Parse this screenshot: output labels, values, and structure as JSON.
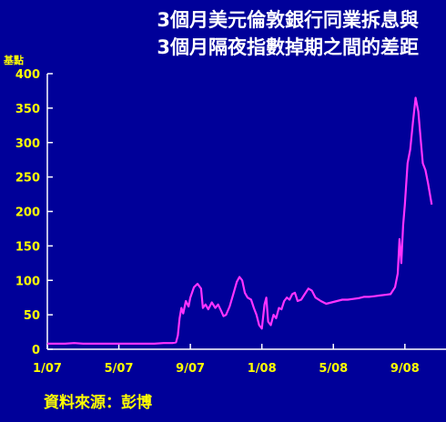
{
  "chart_data": {
    "type": "line",
    "title_lines": [
      "3個月美元倫敦銀行同業拆息與",
      "3個月隔夜指數掉期之間的差距"
    ],
    "ylabel": "基點",
    "source": "資料來源：彭博",
    "ylim": [
      0,
      400
    ],
    "y_ticks": [
      {
        "value": 0,
        "label": "0"
      },
      {
        "value": 50,
        "label": "50"
      },
      {
        "value": 100,
        "label": "100"
      },
      {
        "value": 150,
        "label": "150"
      },
      {
        "value": 200,
        "label": "200"
      },
      {
        "value": 250,
        "label": "250"
      },
      {
        "value": 300,
        "label": "300"
      },
      {
        "value": 350,
        "label": "350"
      },
      {
        "value": 400,
        "label": "400"
      }
    ],
    "x_ticks": [
      {
        "month_index": 0,
        "label": "1/07"
      },
      {
        "month_index": 4,
        "label": "5/07"
      },
      {
        "month_index": 8,
        "label": "9/07"
      },
      {
        "month_index": 12,
        "label": "1/08"
      },
      {
        "month_index": 16,
        "label": "5/08"
      },
      {
        "month_index": 20,
        "label": "9/08"
      }
    ],
    "x_range_months": [
      0,
      22.3
    ],
    "series": [
      {
        "color": "#FF33FF",
        "points": [
          [
            0.0,
            8
          ],
          [
            0.5,
            8
          ],
          [
            1.0,
            8
          ],
          [
            1.5,
            9
          ],
          [
            2.0,
            8
          ],
          [
            2.5,
            8
          ],
          [
            3.0,
            8
          ],
          [
            3.5,
            8
          ],
          [
            4.0,
            8
          ],
          [
            4.5,
            8
          ],
          [
            5.0,
            8
          ],
          [
            5.5,
            8
          ],
          [
            6.0,
            8
          ],
          [
            6.5,
            9
          ],
          [
            7.0,
            9
          ],
          [
            7.2,
            10
          ],
          [
            7.3,
            20
          ],
          [
            7.4,
            45
          ],
          [
            7.5,
            60
          ],
          [
            7.6,
            52
          ],
          [
            7.75,
            70
          ],
          [
            7.9,
            62
          ],
          [
            8.0,
            75
          ],
          [
            8.2,
            90
          ],
          [
            8.4,
            95
          ],
          [
            8.6,
            88
          ],
          [
            8.7,
            60
          ],
          [
            8.85,
            65
          ],
          [
            9.0,
            58
          ],
          [
            9.2,
            68
          ],
          [
            9.4,
            60
          ],
          [
            9.55,
            65
          ],
          [
            9.7,
            57
          ],
          [
            9.85,
            48
          ],
          [
            10.0,
            50
          ],
          [
            10.2,
            62
          ],
          [
            10.4,
            80
          ],
          [
            10.6,
            98
          ],
          [
            10.75,
            105
          ],
          [
            10.9,
            100
          ],
          [
            11.05,
            82
          ],
          [
            11.2,
            75
          ],
          [
            11.4,
            72
          ],
          [
            11.55,
            60
          ],
          [
            11.7,
            50
          ],
          [
            11.85,
            35
          ],
          [
            12.0,
            30
          ],
          [
            12.15,
            65
          ],
          [
            12.25,
            75
          ],
          [
            12.35,
            40
          ],
          [
            12.5,
            35
          ],
          [
            12.65,
            50
          ],
          [
            12.8,
            45
          ],
          [
            12.95,
            60
          ],
          [
            13.1,
            58
          ],
          [
            13.25,
            70
          ],
          [
            13.4,
            75
          ],
          [
            13.55,
            72
          ],
          [
            13.7,
            80
          ],
          [
            13.85,
            82
          ],
          [
            14.0,
            70
          ],
          [
            14.2,
            72
          ],
          [
            14.4,
            80
          ],
          [
            14.6,
            88
          ],
          [
            14.8,
            85
          ],
          [
            15.0,
            75
          ],
          [
            15.3,
            70
          ],
          [
            15.6,
            66
          ],
          [
            15.9,
            68
          ],
          [
            16.2,
            70
          ],
          [
            16.5,
            72
          ],
          [
            16.8,
            72
          ],
          [
            17.1,
            73
          ],
          [
            17.4,
            74
          ],
          [
            17.7,
            76
          ],
          [
            18.0,
            76
          ],
          [
            18.3,
            77
          ],
          [
            18.6,
            78
          ],
          [
            18.9,
            79
          ],
          [
            19.2,
            80
          ],
          [
            19.45,
            90
          ],
          [
            19.6,
            110
          ],
          [
            19.7,
            160
          ],
          [
            19.8,
            125
          ],
          [
            19.9,
            180
          ],
          [
            20.0,
            210
          ],
          [
            20.15,
            270
          ],
          [
            20.3,
            290
          ],
          [
            20.45,
            330
          ],
          [
            20.6,
            365
          ],
          [
            20.75,
            345
          ],
          [
            20.9,
            300
          ],
          [
            21.0,
            270
          ],
          [
            21.15,
            260
          ],
          [
            21.3,
            240
          ],
          [
            21.5,
            210
          ]
        ]
      }
    ]
  }
}
